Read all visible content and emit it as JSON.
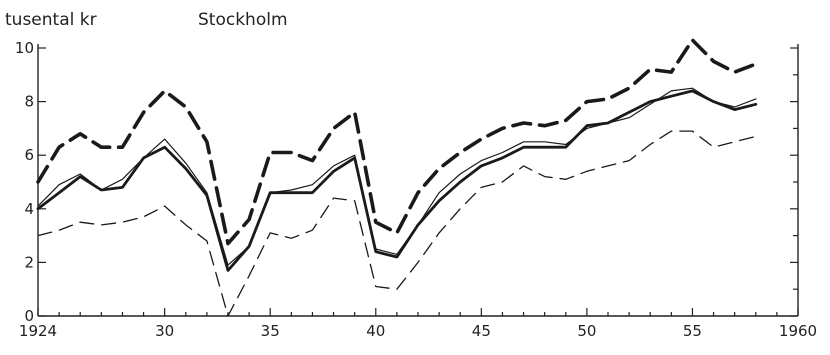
{
  "chart_data": {
    "type": "line",
    "title": "Stockholm",
    "ylabel": "tusental kr",
    "xlabel": "",
    "xlim": [
      1924,
      1960
    ],
    "ylim": [
      0,
      10
    ],
    "x_tick_labels": [
      "1924",
      "30",
      "35",
      "40",
      "45",
      "50",
      "55",
      "1960"
    ],
    "x_tick_values": [
      1924,
      1930,
      1935,
      1940,
      1945,
      1950,
      1955,
      1960
    ],
    "y_tick_labels": [
      "0",
      "2",
      "4",
      "6",
      "8",
      "10"
    ],
    "y_tick_values": [
      0,
      2,
      4,
      6,
      8,
      10
    ],
    "grid": false,
    "x": [
      1924,
      1925,
      1926,
      1927,
      1928,
      1929,
      1930,
      1931,
      1932,
      1933,
      1934,
      1935,
      1936,
      1937,
      1938,
      1939,
      1940,
      1941,
      1942,
      1943,
      1944,
      1945,
      1946,
      1947,
      1948,
      1949,
      1950,
      1951,
      1952,
      1953,
      1954,
      1955,
      1956,
      1957,
      1958
    ],
    "series": [
      {
        "style": "thick-dashed",
        "values": [
          5.0,
          6.3,
          6.8,
          6.3,
          6.3,
          7.6,
          8.4,
          7.8,
          6.5,
          2.7,
          3.6,
          6.1,
          6.1,
          5.8,
          7.0,
          7.6,
          3.5,
          3.1,
          4.6,
          5.5,
          6.1,
          6.6,
          7.0,
          7.2,
          7.1,
          7.3,
          8.0,
          8.1,
          8.5,
          9.2,
          9.1,
          10.3,
          9.5,
          9.1,
          9.4
        ]
      },
      {
        "style": "thin-solid",
        "values": [
          4.1,
          4.9,
          5.3,
          4.7,
          5.1,
          5.9,
          6.6,
          5.7,
          4.6,
          1.9,
          2.6,
          4.6,
          4.7,
          4.9,
          5.6,
          6.0,
          2.5,
          2.3,
          3.4,
          4.6,
          5.3,
          5.8,
          6.1,
          6.5,
          6.5,
          6.4,
          7.0,
          7.2,
          7.4,
          7.9,
          8.4,
          8.5,
          8.0,
          7.8,
          8.1
        ]
      },
      {
        "style": "thick-solid",
        "values": [
          4.0,
          4.6,
          5.2,
          4.7,
          4.8,
          5.9,
          6.3,
          5.5,
          4.5,
          1.7,
          2.6,
          4.6,
          4.6,
          4.6,
          5.4,
          5.9,
          2.4,
          2.2,
          3.4,
          4.3,
          5.0,
          5.6,
          5.9,
          6.3,
          6.3,
          6.3,
          7.1,
          7.2,
          7.6,
          8.0,
          8.2,
          8.4,
          8.0,
          7.7,
          7.9
        ]
      },
      {
        "style": "thin-dashed",
        "values": [
          3.0,
          3.2,
          3.5,
          3.4,
          3.5,
          3.7,
          4.1,
          3.4,
          2.8,
          0.0,
          1.5,
          3.1,
          2.9,
          3.2,
          4.4,
          4.3,
          1.1,
          1.0,
          2.0,
          3.1,
          4.0,
          4.8,
          5.0,
          5.6,
          5.2,
          5.1,
          5.4,
          5.6,
          5.8,
          6.4,
          6.9,
          6.9,
          6.3,
          6.5,
          6.7
        ]
      }
    ]
  }
}
